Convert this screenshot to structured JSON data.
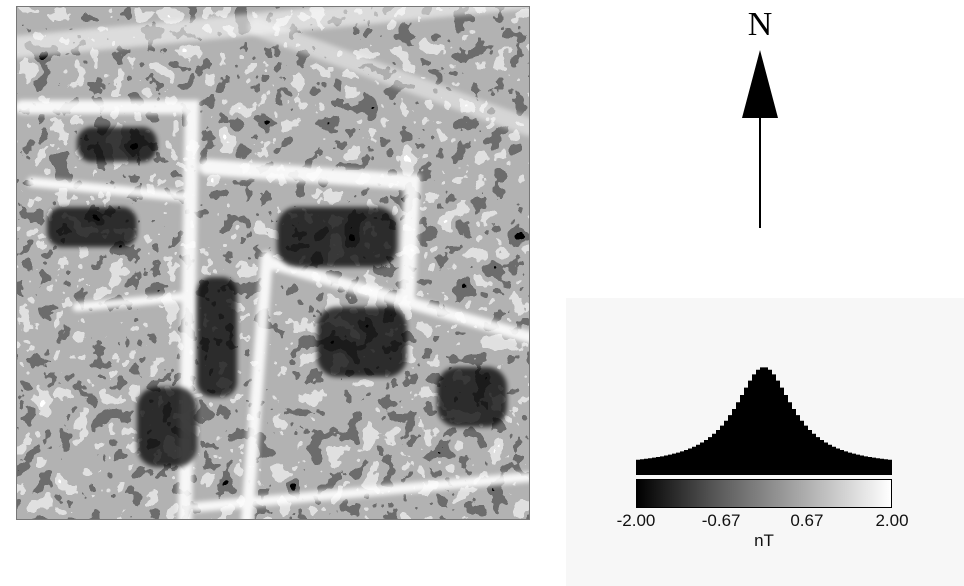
{
  "north_label": "N",
  "legend": {
    "ticks": [
      "-2.00",
      "-0.67",
      "0.67",
      "2.00"
    ],
    "tick_values": [
      -2.0,
      -0.67,
      0.67,
      2.0
    ],
    "range": [
      -2.0,
      2.0
    ],
    "unit": "nT",
    "colormap": [
      "#000000",
      "#ffffff"
    ]
  },
  "histogram_color": "#000000"
}
